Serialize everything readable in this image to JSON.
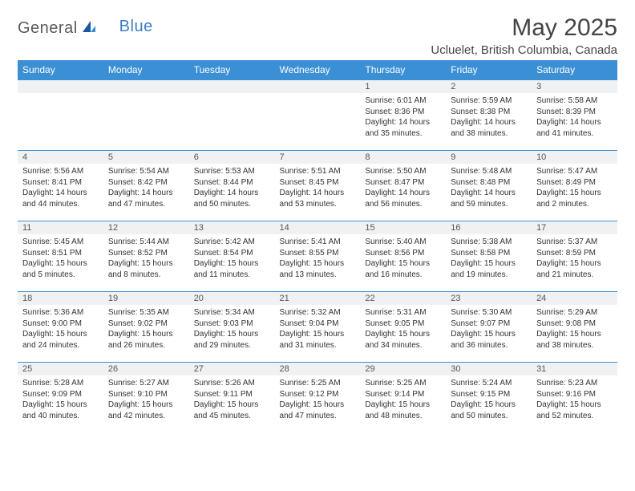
{
  "logo": {
    "text1": "General",
    "text2": "Blue"
  },
  "title": "May 2025",
  "location": "Ucluelet, British Columbia, Canada",
  "weekdays": [
    "Sunday",
    "Monday",
    "Tuesday",
    "Wednesday",
    "Thursday",
    "Friday",
    "Saturday"
  ],
  "colors": {
    "header_bg": "#3b8fd4",
    "header_text": "#ffffff",
    "daynum_bg": "#eff1f2",
    "border": "#3b8fd4",
    "logo_gray": "#5a5a5a",
    "logo_blue": "#3b7fc4"
  },
  "weeks": [
    [
      {
        "num": "",
        "lines": []
      },
      {
        "num": "",
        "lines": []
      },
      {
        "num": "",
        "lines": []
      },
      {
        "num": "",
        "lines": []
      },
      {
        "num": "1",
        "lines": [
          "Sunrise: 6:01 AM",
          "Sunset: 8:36 PM",
          "Daylight: 14 hours",
          "and 35 minutes."
        ]
      },
      {
        "num": "2",
        "lines": [
          "Sunrise: 5:59 AM",
          "Sunset: 8:38 PM",
          "Daylight: 14 hours",
          "and 38 minutes."
        ]
      },
      {
        "num": "3",
        "lines": [
          "Sunrise: 5:58 AM",
          "Sunset: 8:39 PM",
          "Daylight: 14 hours",
          "and 41 minutes."
        ]
      }
    ],
    [
      {
        "num": "4",
        "lines": [
          "Sunrise: 5:56 AM",
          "Sunset: 8:41 PM",
          "Daylight: 14 hours",
          "and 44 minutes."
        ]
      },
      {
        "num": "5",
        "lines": [
          "Sunrise: 5:54 AM",
          "Sunset: 8:42 PM",
          "Daylight: 14 hours",
          "and 47 minutes."
        ]
      },
      {
        "num": "6",
        "lines": [
          "Sunrise: 5:53 AM",
          "Sunset: 8:44 PM",
          "Daylight: 14 hours",
          "and 50 minutes."
        ]
      },
      {
        "num": "7",
        "lines": [
          "Sunrise: 5:51 AM",
          "Sunset: 8:45 PM",
          "Daylight: 14 hours",
          "and 53 minutes."
        ]
      },
      {
        "num": "8",
        "lines": [
          "Sunrise: 5:50 AM",
          "Sunset: 8:47 PM",
          "Daylight: 14 hours",
          "and 56 minutes."
        ]
      },
      {
        "num": "9",
        "lines": [
          "Sunrise: 5:48 AM",
          "Sunset: 8:48 PM",
          "Daylight: 14 hours",
          "and 59 minutes."
        ]
      },
      {
        "num": "10",
        "lines": [
          "Sunrise: 5:47 AM",
          "Sunset: 8:49 PM",
          "Daylight: 15 hours",
          "and 2 minutes."
        ]
      }
    ],
    [
      {
        "num": "11",
        "lines": [
          "Sunrise: 5:45 AM",
          "Sunset: 8:51 PM",
          "Daylight: 15 hours",
          "and 5 minutes."
        ]
      },
      {
        "num": "12",
        "lines": [
          "Sunrise: 5:44 AM",
          "Sunset: 8:52 PM",
          "Daylight: 15 hours",
          "and 8 minutes."
        ]
      },
      {
        "num": "13",
        "lines": [
          "Sunrise: 5:42 AM",
          "Sunset: 8:54 PM",
          "Daylight: 15 hours",
          "and 11 minutes."
        ]
      },
      {
        "num": "14",
        "lines": [
          "Sunrise: 5:41 AM",
          "Sunset: 8:55 PM",
          "Daylight: 15 hours",
          "and 13 minutes."
        ]
      },
      {
        "num": "15",
        "lines": [
          "Sunrise: 5:40 AM",
          "Sunset: 8:56 PM",
          "Daylight: 15 hours",
          "and 16 minutes."
        ]
      },
      {
        "num": "16",
        "lines": [
          "Sunrise: 5:38 AM",
          "Sunset: 8:58 PM",
          "Daylight: 15 hours",
          "and 19 minutes."
        ]
      },
      {
        "num": "17",
        "lines": [
          "Sunrise: 5:37 AM",
          "Sunset: 8:59 PM",
          "Daylight: 15 hours",
          "and 21 minutes."
        ]
      }
    ],
    [
      {
        "num": "18",
        "lines": [
          "Sunrise: 5:36 AM",
          "Sunset: 9:00 PM",
          "Daylight: 15 hours",
          "and 24 minutes."
        ]
      },
      {
        "num": "19",
        "lines": [
          "Sunrise: 5:35 AM",
          "Sunset: 9:02 PM",
          "Daylight: 15 hours",
          "and 26 minutes."
        ]
      },
      {
        "num": "20",
        "lines": [
          "Sunrise: 5:34 AM",
          "Sunset: 9:03 PM",
          "Daylight: 15 hours",
          "and 29 minutes."
        ]
      },
      {
        "num": "21",
        "lines": [
          "Sunrise: 5:32 AM",
          "Sunset: 9:04 PM",
          "Daylight: 15 hours",
          "and 31 minutes."
        ]
      },
      {
        "num": "22",
        "lines": [
          "Sunrise: 5:31 AM",
          "Sunset: 9:05 PM",
          "Daylight: 15 hours",
          "and 34 minutes."
        ]
      },
      {
        "num": "23",
        "lines": [
          "Sunrise: 5:30 AM",
          "Sunset: 9:07 PM",
          "Daylight: 15 hours",
          "and 36 minutes."
        ]
      },
      {
        "num": "24",
        "lines": [
          "Sunrise: 5:29 AM",
          "Sunset: 9:08 PM",
          "Daylight: 15 hours",
          "and 38 minutes."
        ]
      }
    ],
    [
      {
        "num": "25",
        "lines": [
          "Sunrise: 5:28 AM",
          "Sunset: 9:09 PM",
          "Daylight: 15 hours",
          "and 40 minutes."
        ]
      },
      {
        "num": "26",
        "lines": [
          "Sunrise: 5:27 AM",
          "Sunset: 9:10 PM",
          "Daylight: 15 hours",
          "and 42 minutes."
        ]
      },
      {
        "num": "27",
        "lines": [
          "Sunrise: 5:26 AM",
          "Sunset: 9:11 PM",
          "Daylight: 15 hours",
          "and 45 minutes."
        ]
      },
      {
        "num": "28",
        "lines": [
          "Sunrise: 5:25 AM",
          "Sunset: 9:12 PM",
          "Daylight: 15 hours",
          "and 47 minutes."
        ]
      },
      {
        "num": "29",
        "lines": [
          "Sunrise: 5:25 AM",
          "Sunset: 9:14 PM",
          "Daylight: 15 hours",
          "and 48 minutes."
        ]
      },
      {
        "num": "30",
        "lines": [
          "Sunrise: 5:24 AM",
          "Sunset: 9:15 PM",
          "Daylight: 15 hours",
          "and 50 minutes."
        ]
      },
      {
        "num": "31",
        "lines": [
          "Sunrise: 5:23 AM",
          "Sunset: 9:16 PM",
          "Daylight: 15 hours",
          "and 52 minutes."
        ]
      }
    ]
  ]
}
